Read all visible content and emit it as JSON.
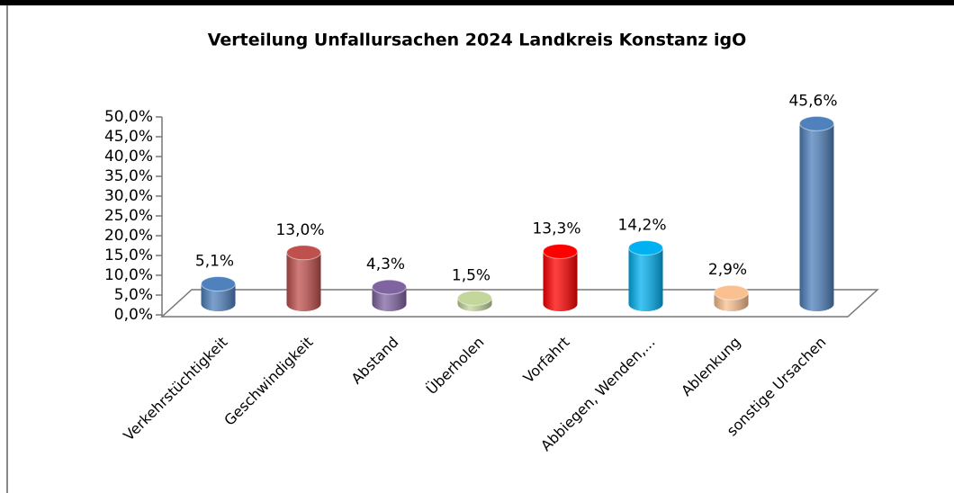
{
  "chart_data": {
    "type": "bar",
    "title": "Verteilung Unfallursachen 2024 Landkreis Konstanz igO",
    "categories": [
      "Verkehrstüchtigkeit",
      "Geschwindigkeit",
      "Abstand",
      "Überholen",
      "Vorfahrt",
      "Abbiegen, Wenden,...",
      "Ablenkung",
      "sonstige Ursachen"
    ],
    "values": [
      5.1,
      13.0,
      4.3,
      1.5,
      13.3,
      14.2,
      2.9,
      45.6
    ],
    "value_labels": [
      "5,1%",
      "13,0%",
      "4,3%",
      "1,5%",
      "13,3%",
      "14,2%",
      "2,9%",
      "45,6%"
    ],
    "colors": [
      "#4f81bd",
      "#c0504d",
      "#8064a2",
      "#c3d69b",
      "#ff0000",
      "#00b0f0",
      "#fac090",
      "#4f81bd"
    ],
    "ylim": [
      0,
      50
    ],
    "yticks": [
      {
        "value": 0,
        "label": "0,0%"
      },
      {
        "value": 5,
        "label": "5,0%"
      },
      {
        "value": 10,
        "label": "10,0%"
      },
      {
        "value": 15,
        "label": "15,0%"
      },
      {
        "value": 20,
        "label": "20,0%"
      },
      {
        "value": 25,
        "label": "25,0%"
      },
      {
        "value": 30,
        "label": "30,0%"
      },
      {
        "value": 35,
        "label": "35,0%"
      },
      {
        "value": 40,
        "label": "40,0%"
      },
      {
        "value": 45,
        "label": "45,0%"
      },
      {
        "value": 50,
        "label": "50,0%"
      }
    ],
    "grid": false
  }
}
